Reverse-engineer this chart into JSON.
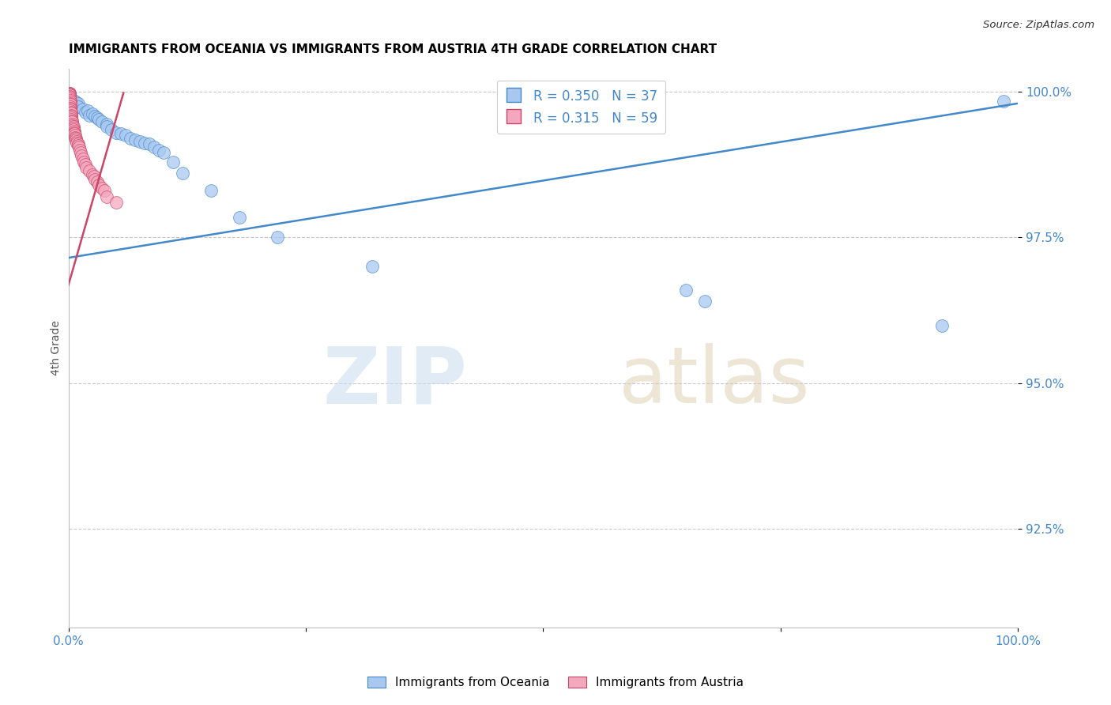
{
  "title": "IMMIGRANTS FROM OCEANIA VS IMMIGRANTS FROM AUSTRIA 4TH GRADE CORRELATION CHART",
  "source": "Source: ZipAtlas.com",
  "xlabel": "",
  "ylabel": "4th Grade",
  "xlim": [
    0.0,
    1.0
  ],
  "ylim": [
    0.908,
    1.004
  ],
  "x_ticks": [
    0.0,
    0.25,
    0.5,
    0.75,
    1.0
  ],
  "x_tick_labels": [
    "0.0%",
    "",
    "",
    "",
    "100.0%"
  ],
  "y_ticks": [
    0.925,
    0.95,
    0.975,
    1.0
  ],
  "y_tick_labels": [
    "92.5%",
    "95.0%",
    "97.5%",
    "100.0%"
  ],
  "legend1_r": "0.350",
  "legend1_n": "37",
  "legend2_r": "0.315",
  "legend2_n": "59",
  "color_blue": "#A8C8F0",
  "color_pink": "#F4A8BE",
  "color_trendline_blue": "#4488CC",
  "color_trendline_pink": "#CC4466",
  "watermark_zip": "ZIP",
  "watermark_atlas": "atlas",
  "blue_scatter_x": [
    0.005,
    0.008,
    0.01,
    0.01,
    0.015,
    0.018,
    0.02,
    0.022,
    0.025,
    0.028,
    0.03,
    0.032,
    0.035,
    0.04,
    0.04,
    0.045,
    0.05,
    0.055,
    0.06,
    0.065,
    0.07,
    0.075,
    0.08,
    0.085,
    0.09,
    0.095,
    0.1,
    0.11,
    0.12,
    0.15,
    0.18,
    0.22,
    0.32,
    0.65,
    0.67,
    0.92,
    0.985
  ],
  "blue_scatter_y": [
    0.9985,
    0.9983,
    0.998,
    0.9975,
    0.997,
    0.9965,
    0.9968,
    0.996,
    0.9962,
    0.9958,
    0.9955,
    0.9952,
    0.9948,
    0.9945,
    0.994,
    0.9935,
    0.993,
    0.9928,
    0.9925,
    0.992,
    0.9918,
    0.9915,
    0.9912,
    0.991,
    0.9905,
    0.99,
    0.9895,
    0.988,
    0.986,
    0.983,
    0.9785,
    0.975,
    0.97,
    0.966,
    0.964,
    0.9598,
    0.9984
  ],
  "pink_scatter_x": [
    0.001,
    0.001,
    0.001,
    0.001,
    0.001,
    0.001,
    0.001,
    0.001,
    0.001,
    0.002,
    0.002,
    0.002,
    0.002,
    0.002,
    0.002,
    0.002,
    0.002,
    0.003,
    0.003,
    0.003,
    0.003,
    0.003,
    0.003,
    0.004,
    0.004,
    0.004,
    0.004,
    0.005,
    0.005,
    0.005,
    0.006,
    0.006,
    0.006,
    0.007,
    0.007,
    0.008,
    0.008,
    0.009,
    0.009,
    0.01,
    0.01,
    0.011,
    0.012,
    0.013,
    0.014,
    0.015,
    0.016,
    0.018,
    0.019,
    0.022,
    0.025,
    0.027,
    0.028,
    0.03,
    0.032,
    0.035,
    0.038,
    0.04,
    0.05
  ],
  "pink_scatter_y": [
    0.9998,
    0.9998,
    0.9997,
    0.9996,
    0.9995,
    0.9994,
    0.9992,
    0.999,
    0.9988,
    0.9985,
    0.9983,
    0.998,
    0.9978,
    0.9975,
    0.9972,
    0.997,
    0.9968,
    0.9965,
    0.9963,
    0.996,
    0.9958,
    0.9955,
    0.9952,
    0.995,
    0.9948,
    0.9945,
    0.9942,
    0.994,
    0.9938,
    0.9935,
    0.9932,
    0.993,
    0.9928,
    0.9925,
    0.9922,
    0.992,
    0.9918,
    0.9915,
    0.9912,
    0.991,
    0.9908,
    0.9905,
    0.99,
    0.9895,
    0.989,
    0.9885,
    0.988,
    0.9875,
    0.987,
    0.9865,
    0.9858,
    0.9855,
    0.985,
    0.9845,
    0.984,
    0.9835,
    0.983,
    0.982,
    0.981
  ],
  "blue_trendline_x0": 0.0,
  "blue_trendline_x1": 1.0,
  "blue_trendline_y0": 0.9715,
  "blue_trendline_y1": 0.998,
  "pink_trendline_x0": 0.0,
  "pink_trendline_x1": 0.058,
  "pink_trendline_y0": 0.9668,
  "pink_trendline_y1": 0.9998
}
